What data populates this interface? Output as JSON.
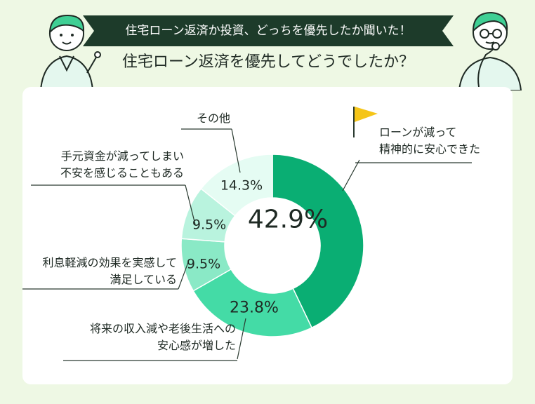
{
  "header": {
    "banner": "住宅ローン返済か投資、どっちを優先したか聞いた！",
    "question": "住宅ローン返済を優先してどうでしたか？"
  },
  "colors": {
    "background": "#eef8e4",
    "banner": "#1d3b2a",
    "flag": "#f5c518"
  },
  "chart_data": {
    "type": "pie",
    "subtype": "donut",
    "slices": [
      {
        "label_lines": [
          "ローンが減って",
          "精神的に安心できた"
        ],
        "value": 42.9,
        "display": "42.9%",
        "color": "#0aae73"
      },
      {
        "label_lines": [
          "将来の収入減や老後生活への",
          "安心感が増した"
        ],
        "value": 23.8,
        "display": "23.8%",
        "color": "#44dba6"
      },
      {
        "label_lines": [
          "利息軽減の効果を実感して",
          "満足している"
        ],
        "value": 9.5,
        "display": "9.5%",
        "color": "#8ae9c6"
      },
      {
        "label_lines": [
          "手元資金が減ってしまい",
          "不安を感じることもある"
        ],
        "value": 9.5,
        "display": "9.5%",
        "color": "#b9f3de"
      },
      {
        "label_lines": [
          "その他"
        ],
        "value": 14.3,
        "display": "14.3%",
        "color": "#e5fcf3"
      }
    ]
  }
}
